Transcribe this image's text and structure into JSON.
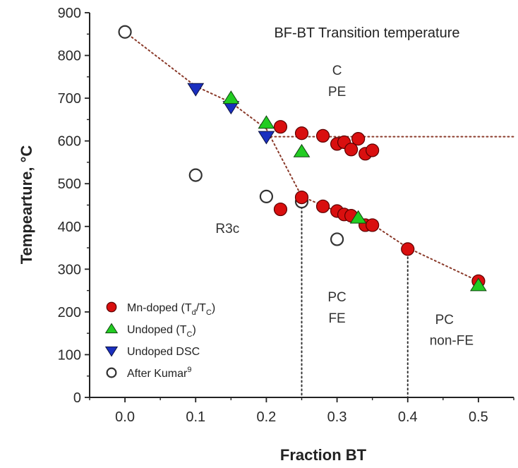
{
  "chart_data": {
    "type": "scatter",
    "title": "BF-BT Transition temperature",
    "xlabel": "Fraction BT",
    "ylabel": "Tempearture, °C",
    "xlim": [
      -0.05,
      0.55
    ],
    "ylim": [
      0,
      900
    ],
    "xticks": [
      0.0,
      0.1,
      0.2,
      0.3,
      0.4,
      0.5
    ],
    "xtick_labels": [
      "0.0",
      "0.1",
      "0.2",
      "0.3",
      "0.4",
      "0.5"
    ],
    "yticks": [
      0,
      100,
      200,
      300,
      400,
      500,
      600,
      700,
      800,
      900
    ],
    "ytick_labels": [
      "0",
      "100",
      "200",
      "300",
      "400",
      "500",
      "600",
      "700",
      "800",
      "900"
    ],
    "grid": false,
    "legend_position": "bottom-left",
    "series": [
      {
        "key": "mn",
        "marker": "circle-filled",
        "color": "#d90f0f",
        "points": [
          [
            0.22,
            633
          ],
          [
            0.25,
            618
          ],
          [
            0.28,
            612
          ],
          [
            0.3,
            593
          ],
          [
            0.31,
            597
          ],
          [
            0.32,
            580
          ],
          [
            0.33,
            605
          ],
          [
            0.34,
            570
          ],
          [
            0.35,
            578
          ],
          [
            0.22,
            440
          ],
          [
            0.25,
            468
          ],
          [
            0.28,
            447
          ],
          [
            0.3,
            436
          ],
          [
            0.31,
            428
          ],
          [
            0.32,
            425
          ],
          [
            0.34,
            403
          ],
          [
            0.35,
            403
          ],
          [
            0.4,
            347
          ],
          [
            0.5,
            272
          ]
        ]
      },
      {
        "key": "undoped",
        "marker": "triangle-up",
        "color": "#22cc22",
        "points": [
          [
            0.15,
            700
          ],
          [
            0.2,
            642
          ],
          [
            0.25,
            575
          ],
          [
            0.33,
            420
          ],
          [
            0.5,
            262
          ]
        ]
      },
      {
        "key": "dsc",
        "marker": "triangle-down",
        "color": "#1a2fbf",
        "points": [
          [
            0.1,
            722
          ],
          [
            0.15,
            680
          ],
          [
            0.2,
            610
          ]
        ]
      },
      {
        "key": "kumar",
        "marker": "circle-open",
        "color": "#ffffff",
        "points": [
          [
            0.0,
            855
          ],
          [
            0.1,
            520
          ],
          [
            0.2,
            470
          ],
          [
            0.25,
            458
          ],
          [
            0.3,
            370
          ]
        ]
      }
    ],
    "guide_lines": {
      "color": "#8a3a2a",
      "boundary_upper": [
        [
          0.0,
          855
        ],
        [
          0.1,
          728
        ],
        [
          0.15,
          690
        ],
        [
          0.2,
          628
        ]
      ],
      "boundary_lower": [
        [
          0.2,
          628
        ],
        [
          0.25,
          470
        ],
        [
          0.3,
          435
        ],
        [
          0.35,
          405
        ],
        [
          0.4,
          350
        ],
        [
          0.5,
          272
        ]
      ],
      "horizontal_y": 610,
      "horizontal_x": [
        0.2,
        0.55
      ],
      "vertical": [
        {
          "x": 0.25,
          "y_top": 465
        },
        {
          "x": 0.4,
          "y_top": 348
        }
      ]
    },
    "legend": [
      {
        "series": "mn",
        "label": "Mn-doped (T",
        "sub1": "d",
        "mid": "/T",
        "sub2": "C",
        "tail": ")"
      },
      {
        "series": "undoped",
        "label": "Undoped (T",
        "sub1": "C",
        "mid": "",
        "sub2": "",
        "tail": ")"
      },
      {
        "series": "dsc",
        "label": "Undoped DSC",
        "sub1": "",
        "mid": "",
        "sub2": "",
        "tail": ""
      },
      {
        "series": "kumar",
        "label": "After Kumar",
        "sup": "9"
      }
    ],
    "annotations": [
      {
        "key": "c",
        "text": "C",
        "x": 0.3,
        "y": 755
      },
      {
        "key": "pe",
        "text": "PE",
        "x": 0.3,
        "y": 705
      },
      {
        "key": "r3c",
        "text": "R3c",
        "x": 0.145,
        "y": 385
      },
      {
        "key": "pc1",
        "text": "PC",
        "x": 0.3,
        "y": 225
      },
      {
        "key": "fe",
        "text": "FE",
        "x": 0.3,
        "y": 175
      },
      {
        "key": "pc2",
        "text": "PC",
        "x": 0.452,
        "y": 172
      },
      {
        "key": "nonfe",
        "text": "non-FE",
        "x": 0.462,
        "y": 123
      }
    ]
  }
}
